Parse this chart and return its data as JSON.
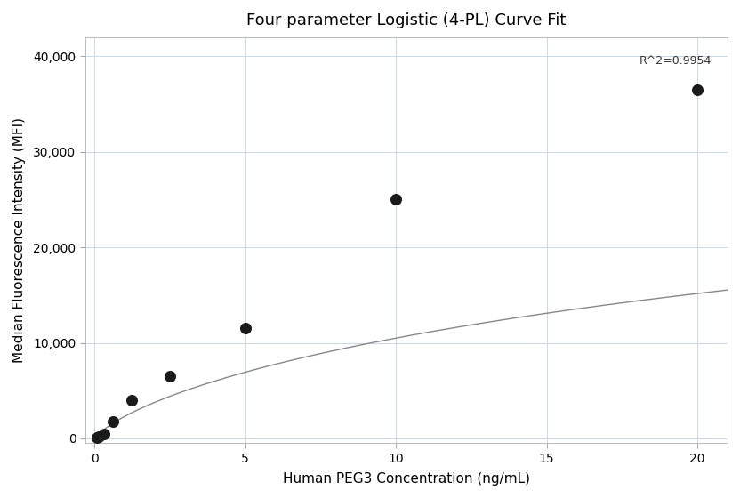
{
  "title": "Four parameter Logistic (4-PL) Curve Fit",
  "xlabel": "Human PEG3 Concentration (ng/mL)",
  "ylabel": "Median Fluorescence Intensity (MFI)",
  "scatter_x": [
    0.078,
    0.156,
    0.313,
    0.625,
    1.25,
    2.5,
    5.0,
    10.0,
    20.0
  ],
  "scatter_y": [
    100,
    200,
    500,
    1800,
    4000,
    6500,
    11500,
    25000,
    36500
  ],
  "r_squared": "R^2=0.9954",
  "xlim": [
    -0.3,
    21
  ],
  "ylim": [
    -500,
    42000
  ],
  "xticks": [
    0,
    5,
    10,
    15,
    20
  ],
  "yticks": [
    0,
    10000,
    20000,
    30000,
    40000
  ],
  "ytick_labels": [
    "0",
    "10,000",
    "20,000",
    "30,000",
    "40,000"
  ],
  "4pl_A": -200,
  "4pl_B": 0.72,
  "4pl_C": 55.0,
  "4pl_D": 47000,
  "grid_color": "#c8d8e8",
  "line_color": "#888888",
  "dot_color": "#1a1a1a",
  "bg_color": "#ffffff",
  "title_fontsize": 13,
  "label_fontsize": 11,
  "tick_fontsize": 10,
  "annot_fontsize": 9,
  "dot_size": 70
}
